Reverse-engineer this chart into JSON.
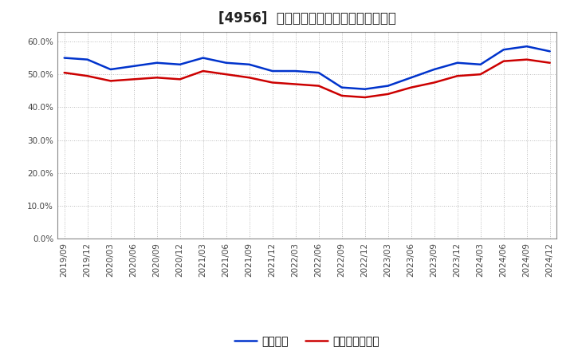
{
  "title": "[4956]  固定比率、固定長期適合率の推移",
  "x_labels": [
    "2019/09",
    "2019/12",
    "2020/03",
    "2020/06",
    "2020/09",
    "2020/12",
    "2021/03",
    "2021/06",
    "2021/09",
    "2021/12",
    "2022/03",
    "2022/06",
    "2022/09",
    "2022/12",
    "2023/03",
    "2023/06",
    "2023/09",
    "2023/12",
    "2024/03",
    "2024/06",
    "2024/09",
    "2024/12"
  ],
  "fixed_ratio": [
    55.0,
    54.5,
    51.5,
    52.5,
    53.5,
    53.0,
    55.0,
    53.5,
    53.0,
    51.0,
    51.0,
    50.5,
    46.0,
    45.5,
    46.5,
    49.0,
    51.5,
    53.5,
    53.0,
    57.5,
    58.5,
    57.0
  ],
  "fixed_long_ratio": [
    50.5,
    49.5,
    48.0,
    48.5,
    49.0,
    48.5,
    51.0,
    50.0,
    49.0,
    47.5,
    47.0,
    46.5,
    43.5,
    43.0,
    44.0,
    46.0,
    47.5,
    49.5,
    50.0,
    54.0,
    54.5,
    53.5
  ],
  "line_color_fixed": "#0033cc",
  "line_color_fixed_long": "#cc0000",
  "legend_fixed": "固定比率",
  "legend_fixed_long": "固定長期適合率",
  "ylim": [
    0.0,
    63.0
  ],
  "yticks": [
    0.0,
    10.0,
    20.0,
    30.0,
    40.0,
    50.0,
    60.0
  ],
  "background_color": "#ffffff",
  "plot_bg_color": "#ffffff",
  "grid_color": "#bbbbbb",
  "title_fontsize": 12,
  "axis_fontsize": 7.5,
  "legend_fontsize": 10,
  "linewidth": 1.8
}
